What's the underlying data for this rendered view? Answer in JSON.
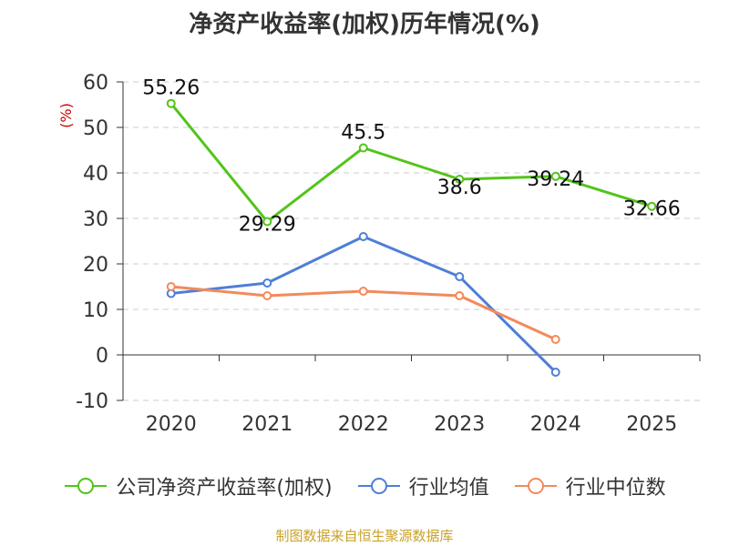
{
  "chart_data": {
    "type": "line",
    "title": "净资产收益率(加权)历年情况(%)",
    "ylabel": "(%)",
    "xlabel": "",
    "categories": [
      "2020",
      "2021",
      "2022",
      "2023",
      "2024",
      "2025"
    ],
    "ylim": [
      -10,
      60
    ],
    "yticks": [
      -10,
      0,
      10,
      20,
      30,
      40,
      50,
      60
    ],
    "grid": true,
    "legend_position": "bottom",
    "series": [
      {
        "name": "公司净资产收益率(加权)",
        "color": "#52c41a",
        "values": [
          55.26,
          29.29,
          45.5,
          38.6,
          39.24,
          32.66
        ],
        "labels": [
          "55.26",
          "29.29",
          "45.5",
          "38.6",
          "39.24",
          "32.66"
        ]
      },
      {
        "name": "行业均值",
        "color": "#4e7fd6",
        "values": [
          13.5,
          15.8,
          26.0,
          17.2,
          -3.8,
          null
        ]
      },
      {
        "name": "行业中位数",
        "color": "#f28a5b",
        "values": [
          15.0,
          13.0,
          14.0,
          13.0,
          3.4,
          null
        ]
      }
    ],
    "source_note": "制图数据来自恒生聚源数据库"
  }
}
